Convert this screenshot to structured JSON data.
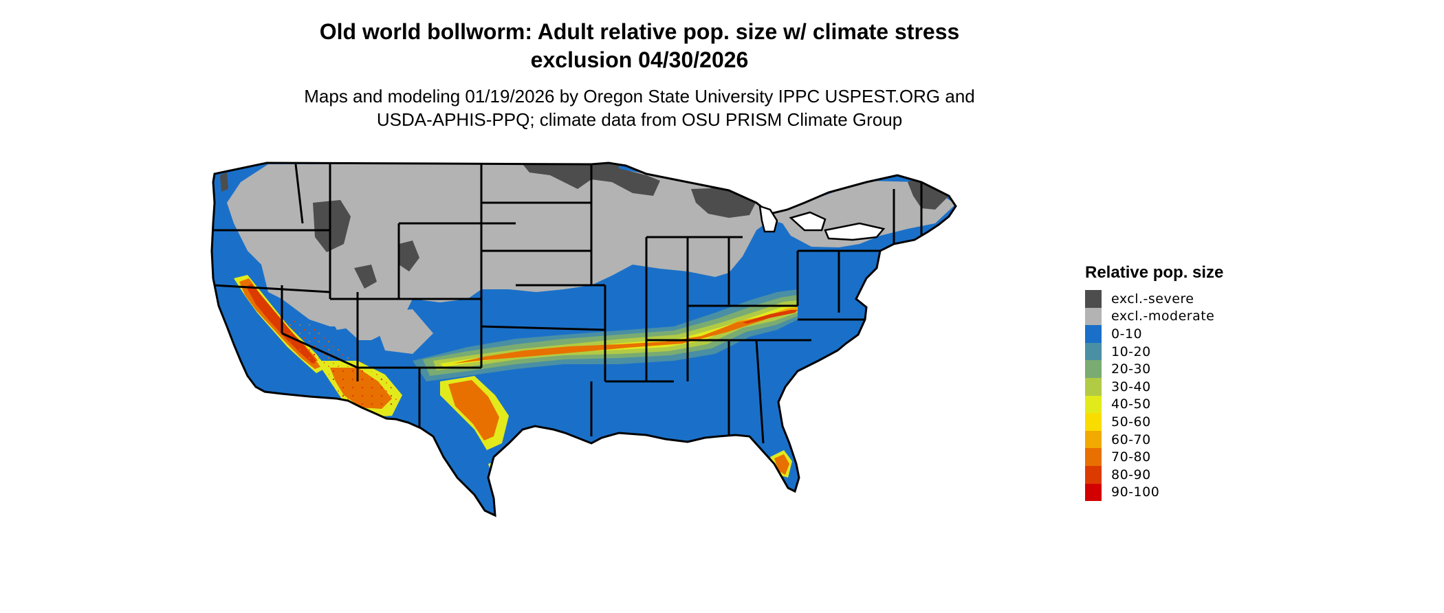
{
  "title_line1": "Old world bollworm: Adult relative pop. size w/ climate stress",
  "title_line2": "exclusion 04/30/2026",
  "subtitle_line1": "Maps and modeling 01/19/2026 by Oregon State University IPPC USPEST.ORG and",
  "subtitle_line2": "USDA-APHIS-PPQ; climate data from OSU PRISM Climate Group",
  "legend": {
    "title": "Relative pop. size",
    "items": [
      {
        "label": "excl.-severe",
        "color": "#4d4d4d"
      },
      {
        "label": "excl.-moderate",
        "color": "#b3b3b3"
      },
      {
        "label": "0-10",
        "color": "#1a70c8"
      },
      {
        "label": "10-20",
        "color": "#4a8fa3"
      },
      {
        "label": "20-30",
        "color": "#7aab72"
      },
      {
        "label": "30-40",
        "color": "#b2cb44"
      },
      {
        "label": "40-50",
        "color": "#e3ea1c"
      },
      {
        "label": "50-60",
        "color": "#f9dc00"
      },
      {
        "label": "60-70",
        "color": "#f2a900"
      },
      {
        "label": "70-80",
        "color": "#e87000"
      },
      {
        "label": "80-90",
        "color": "#dc3b00"
      },
      {
        "label": "90-100",
        "color": "#d20000"
      }
    ]
  }
}
